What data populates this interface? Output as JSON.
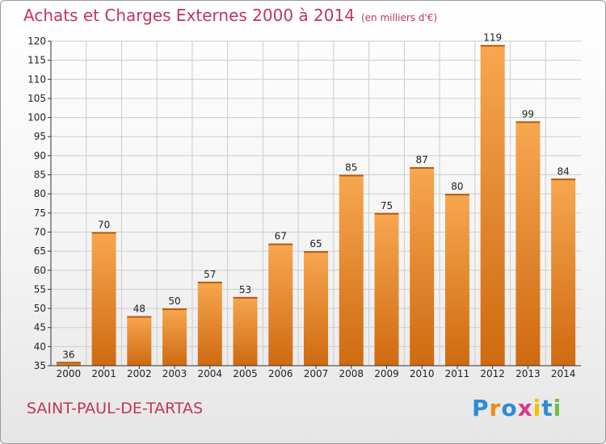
{
  "title": "Achats et Charges Externes 2000 à 2014",
  "unit": "(en milliers d'€)",
  "location": "SAINT-PAUL-DE-TARTAS",
  "logo": {
    "letters": [
      "P",
      "r",
      "o",
      "x",
      "i",
      "t",
      "i"
    ],
    "colors": [
      "#2e8bd6",
      "#f08a1c",
      "#2e8bd6",
      "#d83a8a",
      "#f2c200",
      "#2e8bd6",
      "#6abf40"
    ]
  },
  "colors": {
    "bar_top": "#f7a750",
    "bar_bottom": "#cf6a10",
    "title": "#c2355a",
    "grid": "#cccccc"
  },
  "chart_data": {
    "type": "bar",
    "title": "Achats et Charges Externes 2000 à 2014",
    "categories": [
      "2000",
      "2001",
      "2002",
      "2003",
      "2004",
      "2005",
      "2006",
      "2007",
      "2008",
      "2009",
      "2010",
      "2011",
      "2012",
      "2013",
      "2014"
    ],
    "values": [
      36,
      70,
      48,
      50,
      57,
      53,
      67,
      65,
      85,
      75,
      87,
      80,
      119,
      99,
      84
    ],
    "ylim": [
      35,
      120
    ],
    "yticks": [
      35,
      40,
      45,
      50,
      55,
      60,
      65,
      70,
      75,
      80,
      85,
      90,
      95,
      100,
      105,
      110,
      115,
      120
    ],
    "grid": true,
    "xlabel": "",
    "ylabel": ""
  }
}
